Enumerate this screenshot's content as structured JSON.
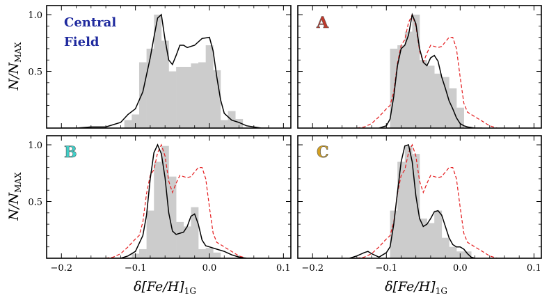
{
  "figure": {
    "ylabel_main": "N/N",
    "ylabel_sub": "MAX",
    "xlabel_main": "δ[Fe/H]",
    "xlabel_sub": "1G"
  },
  "colors": {
    "histogram": "#cccccc",
    "kde": "#000000",
    "reference": "#e41a1c",
    "central_label": "#1f2a9e",
    "A": "#c0392b",
    "B": "#3fd0c9",
    "C": "#d4a020"
  },
  "chart_data": [
    {
      "type": "bar",
      "panel": "central",
      "label_lines": [
        "Central",
        "Field"
      ],
      "label_color": "#1f2a9e",
      "xlim": [
        -0.22,
        0.11
      ],
      "ylim": [
        0,
        1.08
      ],
      "xticks": [
        "−0.2",
        "−0.1",
        "0.0",
        "0.1"
      ],
      "xtick_values": [
        -0.2,
        -0.1,
        0.0,
        0.1
      ],
      "yticks": [
        "0.5",
        "1.0"
      ],
      "ytick_values": [
        0.5,
        1.0
      ],
      "ylabel": "N/N_MAX",
      "xlabel": "",
      "histogram": {
        "bin_edges": [
          -0.115,
          -0.105,
          -0.095,
          -0.085,
          -0.075,
          -0.065,
          -0.055,
          -0.045,
          -0.035,
          -0.025,
          -0.015,
          -0.005,
          0.005,
          0.015,
          0.025,
          0.035,
          0.045
        ],
        "values": [
          0.07,
          0.12,
          0.58,
          0.7,
          1.0,
          0.77,
          0.5,
          0.54,
          0.54,
          0.57,
          0.58,
          0.73,
          0.51,
          0.07,
          0.15,
          0.08
        ]
      },
      "kde": {
        "x": [
          -0.2,
          -0.18,
          -0.16,
          -0.14,
          -0.12,
          -0.11,
          -0.1,
          -0.09,
          -0.08,
          -0.075,
          -0.07,
          -0.065,
          -0.06,
          -0.055,
          -0.05,
          -0.045,
          -0.04,
          -0.035,
          -0.03,
          -0.02,
          -0.01,
          0.0,
          0.005,
          0.01,
          0.015,
          0.02,
          0.03,
          0.04,
          0.05,
          0.06,
          0.07,
          0.08
        ],
        "y": [
          0.0,
          0.0,
          0.01,
          0.01,
          0.05,
          0.12,
          0.17,
          0.32,
          0.62,
          0.8,
          0.97,
          1.0,
          0.78,
          0.6,
          0.56,
          0.64,
          0.73,
          0.73,
          0.71,
          0.73,
          0.79,
          0.8,
          0.68,
          0.45,
          0.25,
          0.13,
          0.07,
          0.05,
          0.02,
          0.01,
          0.0,
          0.0
        ]
      }
    },
    {
      "type": "bar",
      "panel": "A",
      "label_lines": [
        "A"
      ],
      "label_color": "#c0392b",
      "xlim": [
        -0.22,
        0.11
      ],
      "ylim": [
        0,
        1.08
      ],
      "xticks": [
        "−0.2",
        "−0.1",
        "0.0",
        "0.1"
      ],
      "xtick_values": [
        -0.2,
        -0.1,
        0.0,
        0.1
      ],
      "yticks": [
        "0.5",
        "1.0"
      ],
      "ytick_values": [
        0.5,
        1.0
      ],
      "ylabel": "",
      "xlabel": "",
      "histogram": {
        "bin_edges": [
          -0.095,
          -0.085,
          -0.075,
          -0.065,
          -0.055,
          -0.045,
          -0.035,
          -0.025,
          -0.015,
          -0.005,
          0.005
        ],
        "values": [
          0.7,
          0.73,
          0.85,
          1.0,
          0.6,
          0.55,
          0.48,
          0.45,
          0.35,
          0.18
        ]
      },
      "kde": {
        "x": [
          -0.11,
          -0.1,
          -0.095,
          -0.09,
          -0.085,
          -0.08,
          -0.075,
          -0.07,
          -0.065,
          -0.06,
          -0.055,
          -0.05,
          -0.045,
          -0.04,
          -0.035,
          -0.03,
          -0.025,
          -0.02,
          -0.015,
          -0.01,
          -0.005,
          0.0,
          0.005,
          0.01,
          0.02,
          0.03
        ],
        "y": [
          0.0,
          0.02,
          0.08,
          0.28,
          0.55,
          0.7,
          0.73,
          0.82,
          1.0,
          0.92,
          0.7,
          0.58,
          0.55,
          0.62,
          0.64,
          0.59,
          0.45,
          0.35,
          0.24,
          0.17,
          0.09,
          0.04,
          0.02,
          0.01,
          0.0,
          0.0
        ]
      },
      "reference_curve": {
        "x": [
          -0.14,
          -0.13,
          -0.12,
          -0.11,
          -0.1,
          -0.095,
          -0.09,
          -0.085,
          -0.08,
          -0.075,
          -0.07,
          -0.065,
          -0.06,
          -0.055,
          -0.05,
          -0.045,
          -0.04,
          -0.035,
          -0.03,
          -0.025,
          -0.02,
          -0.015,
          -0.01,
          -0.005,
          0.0,
          0.005,
          0.01,
          0.015,
          0.02,
          0.03,
          0.04,
          0.05
        ],
        "y": [
          0.0,
          0.01,
          0.04,
          0.1,
          0.17,
          0.2,
          0.32,
          0.57,
          0.73,
          0.78,
          0.93,
          1.0,
          0.9,
          0.68,
          0.58,
          0.66,
          0.73,
          0.72,
          0.71,
          0.72,
          0.76,
          0.8,
          0.8,
          0.7,
          0.45,
          0.22,
          0.14,
          0.12,
          0.1,
          0.06,
          0.02,
          0.0
        ]
      }
    },
    {
      "type": "bar",
      "panel": "B",
      "label_lines": [
        "B"
      ],
      "label_color": "#3fd0c9",
      "xlim": [
        -0.22,
        0.11
      ],
      "ylim": [
        0,
        1.08
      ],
      "xticks": [
        "−0.2",
        "−0.1",
        "0.0",
        "0.1"
      ],
      "xtick_values": [
        -0.2,
        -0.1,
        0.0,
        0.1
      ],
      "yticks": [
        "0.5",
        "1.0"
      ],
      "ytick_values": [
        0.5,
        1.0
      ],
      "ylabel": "N/N_MAX",
      "xlabel": "δ[Fe/H]_1G",
      "histogram": {
        "bin_edges": [
          -0.105,
          -0.095,
          -0.085,
          -0.075,
          -0.065,
          -0.055,
          -0.045,
          -0.035,
          -0.025,
          -0.015,
          -0.005,
          0.005,
          0.015
        ],
        "values": [
          0.04,
          0.08,
          0.42,
          0.85,
          0.99,
          0.72,
          0.32,
          0.28,
          0.45,
          0.08,
          0.09,
          0.05
        ]
      },
      "kde": {
        "x": [
          -0.13,
          -0.12,
          -0.11,
          -0.1,
          -0.09,
          -0.085,
          -0.08,
          -0.075,
          -0.07,
          -0.065,
          -0.06,
          -0.055,
          -0.05,
          -0.045,
          -0.04,
          -0.035,
          -0.03,
          -0.025,
          -0.02,
          -0.015,
          -0.01,
          -0.005,
          0.0,
          0.01,
          0.02,
          0.03,
          0.04,
          0.05
        ],
        "y": [
          0.0,
          0.0,
          0.02,
          0.06,
          0.2,
          0.38,
          0.7,
          0.93,
          1.0,
          0.92,
          0.71,
          0.4,
          0.24,
          0.21,
          0.22,
          0.23,
          0.28,
          0.37,
          0.39,
          0.3,
          0.16,
          0.11,
          0.1,
          0.08,
          0.06,
          0.03,
          0.01,
          0.0
        ]
      },
      "reference_curve": {
        "x": [
          -0.14,
          -0.13,
          -0.12,
          -0.11,
          -0.1,
          -0.095,
          -0.09,
          -0.085,
          -0.08,
          -0.075,
          -0.07,
          -0.065,
          -0.06,
          -0.055,
          -0.05,
          -0.045,
          -0.04,
          -0.035,
          -0.03,
          -0.025,
          -0.02,
          -0.015,
          -0.01,
          -0.005,
          0.0,
          0.005,
          0.01,
          0.015,
          0.02,
          0.03,
          0.04,
          0.05
        ],
        "y": [
          0.0,
          0.01,
          0.04,
          0.1,
          0.17,
          0.2,
          0.32,
          0.57,
          0.73,
          0.78,
          0.93,
          1.0,
          0.9,
          0.68,
          0.58,
          0.66,
          0.73,
          0.72,
          0.71,
          0.72,
          0.76,
          0.8,
          0.8,
          0.7,
          0.45,
          0.22,
          0.14,
          0.12,
          0.1,
          0.06,
          0.02,
          0.0
        ]
      }
    },
    {
      "type": "bar",
      "panel": "C",
      "label_lines": [
        "C"
      ],
      "label_color": "#d4a020",
      "xlim": [
        -0.22,
        0.11
      ],
      "ylim": [
        0,
        1.08
      ],
      "xticks": [
        "−0.2",
        "−0.1",
        "0.0",
        "0.1"
      ],
      "xtick_values": [
        -0.2,
        -0.1,
        0.0,
        0.1
      ],
      "yticks": [
        "0.5",
        "1.0"
      ],
      "ytick_values": [
        0.5,
        1.0
      ],
      "ylabel": "",
      "xlabel": "δ[Fe/H]_1G",
      "histogram": {
        "bin_edges": [
          -0.095,
          -0.085,
          -0.075,
          -0.065,
          -0.055,
          -0.045,
          -0.035,
          -0.025,
          -0.015,
          -0.005,
          0.005,
          0.015
        ],
        "values": [
          0.42,
          0.85,
          0.99,
          0.92,
          0.35,
          0.31,
          0.42,
          0.18,
          0.1,
          0.06,
          0.06
        ]
      },
      "kde": {
        "x": [
          -0.15,
          -0.14,
          -0.13,
          -0.125,
          -0.12,
          -0.11,
          -0.1,
          -0.095,
          -0.09,
          -0.085,
          -0.08,
          -0.075,
          -0.07,
          -0.065,
          -0.06,
          -0.055,
          -0.05,
          -0.045,
          -0.04,
          -0.035,
          -0.03,
          -0.025,
          -0.02,
          -0.015,
          -0.01,
          -0.005,
          0.0,
          0.005,
          0.01,
          0.015,
          0.02
        ],
        "y": [
          0.0,
          0.02,
          0.05,
          0.06,
          0.04,
          0.01,
          0.05,
          0.1,
          0.3,
          0.58,
          0.85,
          0.99,
          1.0,
          0.85,
          0.55,
          0.35,
          0.28,
          0.3,
          0.35,
          0.41,
          0.42,
          0.38,
          0.28,
          0.18,
          0.12,
          0.1,
          0.1,
          0.08,
          0.04,
          0.01,
          0.0
        ]
      },
      "reference_curve": {
        "x": [
          -0.14,
          -0.13,
          -0.12,
          -0.11,
          -0.1,
          -0.095,
          -0.09,
          -0.085,
          -0.08,
          -0.075,
          -0.07,
          -0.065,
          -0.06,
          -0.055,
          -0.05,
          -0.045,
          -0.04,
          -0.035,
          -0.03,
          -0.025,
          -0.02,
          -0.015,
          -0.01,
          -0.005,
          0.0,
          0.005,
          0.01,
          0.015,
          0.02,
          0.03,
          0.04,
          0.05
        ],
        "y": [
          0.0,
          0.01,
          0.04,
          0.1,
          0.17,
          0.2,
          0.32,
          0.57,
          0.73,
          0.78,
          0.93,
          1.0,
          0.9,
          0.68,
          0.58,
          0.66,
          0.73,
          0.72,
          0.71,
          0.72,
          0.76,
          0.8,
          0.8,
          0.7,
          0.45,
          0.22,
          0.14,
          0.12,
          0.1,
          0.06,
          0.02,
          0.0
        ]
      }
    }
  ]
}
